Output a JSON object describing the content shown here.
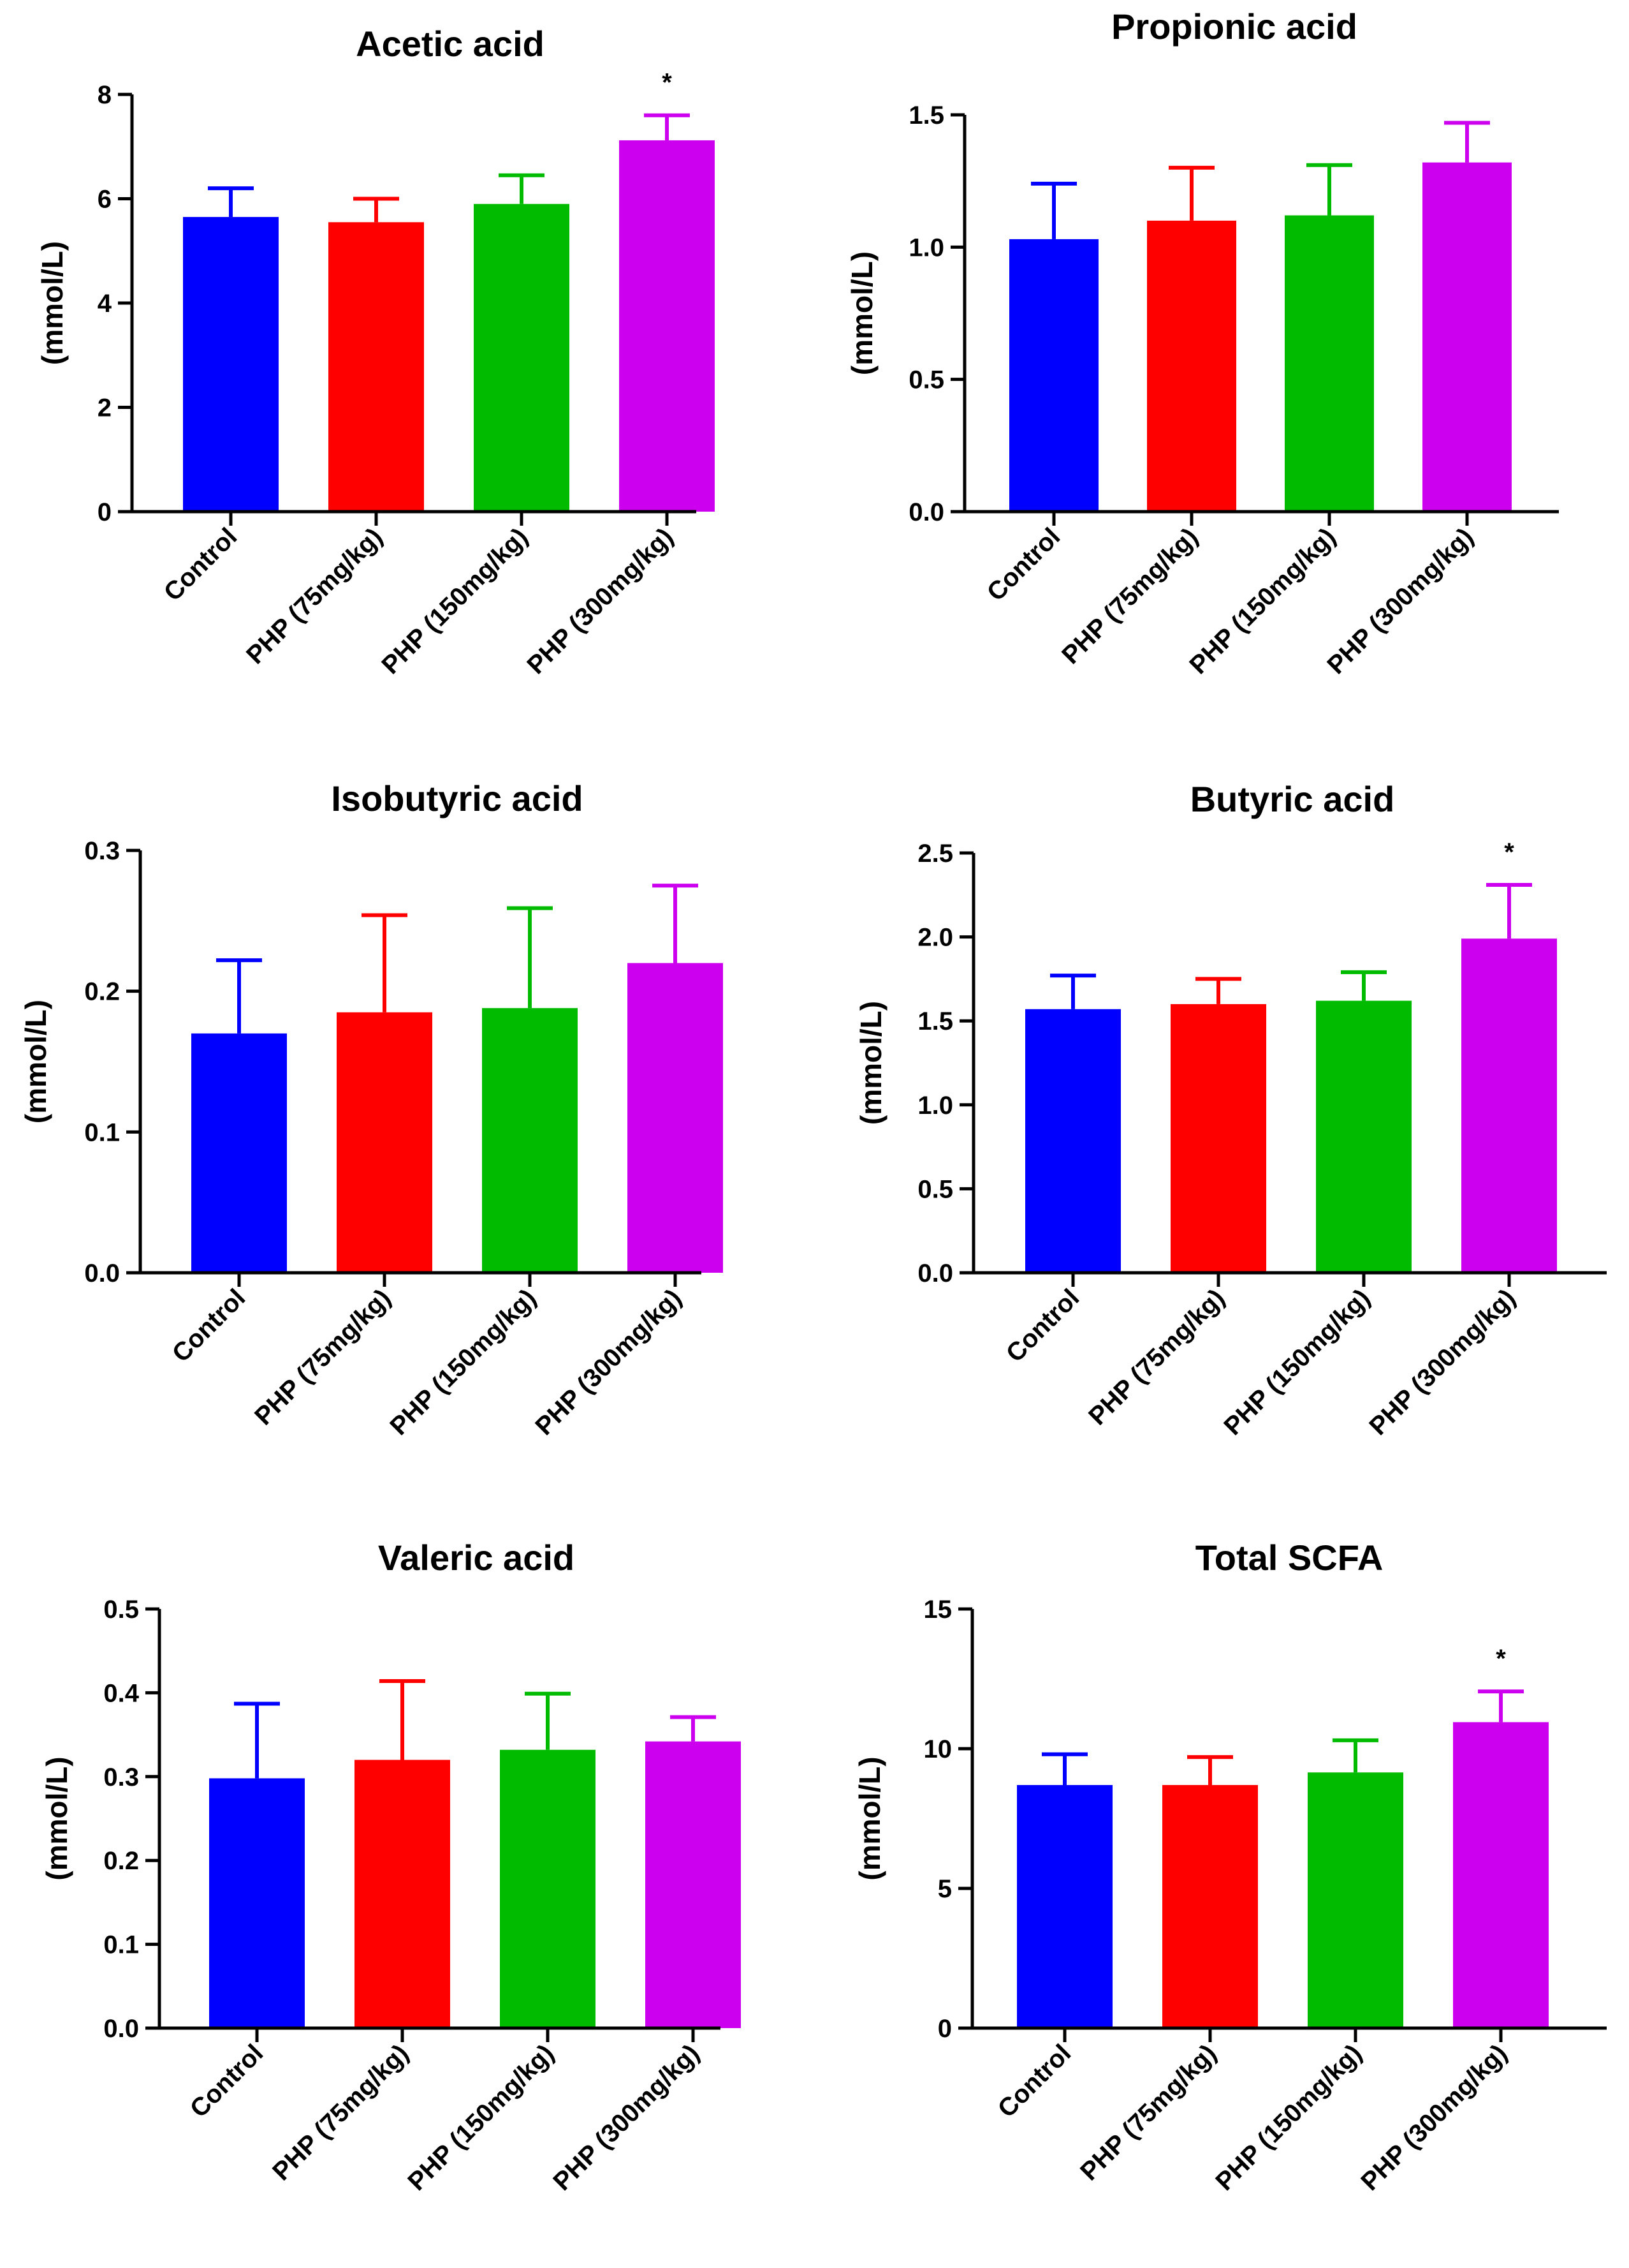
{
  "chart_data": [
    {
      "type": "bar",
      "title": "Acetic acid",
      "xlabel": "",
      "ylabel": "(mmol/L)",
      "categories": [
        "Control",
        "PHP (75mg/kg)",
        "PHP (150mg/kg)",
        "PHP (300mg/kg)"
      ],
      "values": [
        5.65,
        5.55,
        5.9,
        7.12
      ],
      "errors": [
        0.55,
        0.45,
        0.55,
        0.48
      ],
      "significance": [
        "",
        "",
        "",
        "*"
      ],
      "ylim": [
        0,
        8
      ],
      "yticks": [
        0,
        2,
        4,
        6,
        8
      ],
      "ytick_labels": [
        "0",
        "2",
        "4",
        "6",
        "8"
      ],
      "grid": false
    },
    {
      "type": "bar",
      "title": "Propionic acid",
      "xlabel": "",
      "ylabel": "(mmol/L)",
      "categories": [
        "Control",
        "PHP (75mg/kg)",
        "PHP (150mg/kg)",
        "PHP (300mg/kg)"
      ],
      "values": [
        1.03,
        1.1,
        1.12,
        1.32
      ],
      "errors": [
        0.21,
        0.2,
        0.19,
        0.15
      ],
      "significance": [
        "",
        "",
        "",
        ""
      ],
      "ylim": [
        0,
        1.5
      ],
      "yticks": [
        0,
        0.5,
        1.0,
        1.5
      ],
      "ytick_labels": [
        "0.0",
        "0.5",
        "1.0",
        "1.5"
      ],
      "grid": false
    },
    {
      "type": "bar",
      "title": "Isobutyric acid",
      "xlabel": "",
      "ylabel": "(mmol/L)",
      "categories": [
        "Control",
        "PHP (75mg/kg)",
        "PHP (150mg/kg)",
        "PHP (300mg/kg)"
      ],
      "values": [
        0.17,
        0.185,
        0.188,
        0.22
      ],
      "errors": [
        0.052,
        0.069,
        0.071,
        0.055
      ],
      "significance": [
        "",
        "",
        "",
        ""
      ],
      "ylim": [
        0,
        0.3
      ],
      "yticks": [
        0,
        0.1,
        0.2,
        0.3
      ],
      "ytick_labels": [
        "0.0",
        "0.1",
        "0.2",
        "0.3"
      ],
      "grid": false
    },
    {
      "type": "bar",
      "title": "Butyric acid",
      "xlabel": "",
      "ylabel": "(mmol/L)",
      "categories": [
        "Control",
        "PHP (75mg/kg)",
        "PHP (150mg/kg)",
        "PHP (300mg/kg)"
      ],
      "values": [
        1.57,
        1.6,
        1.62,
        1.99
      ],
      "errors": [
        0.2,
        0.15,
        0.17,
        0.32
      ],
      "significance": [
        "",
        "",
        "",
        "*"
      ],
      "ylim": [
        0,
        2.5
      ],
      "yticks": [
        0,
        0.5,
        1.0,
        1.5,
        2.0,
        2.5
      ],
      "ytick_labels": [
        "0.0",
        "0.5",
        "1.0",
        "1.5",
        "2.0",
        "2.5"
      ],
      "grid": false
    },
    {
      "type": "bar",
      "title": "Valeric acid",
      "xlabel": "",
      "ylabel": "(mmol/L)",
      "categories": [
        "Control",
        "PHP (75mg/kg)",
        "PHP (150mg/kg)",
        "PHP (300mg/kg)"
      ],
      "values": [
        0.298,
        0.32,
        0.332,
        0.342
      ],
      "errors": [
        0.089,
        0.094,
        0.067,
        0.029
      ],
      "significance": [
        "",
        "",
        "",
        ""
      ],
      "ylim": [
        0,
        0.5
      ],
      "yticks": [
        0,
        0.1,
        0.2,
        0.3,
        0.4,
        0.5
      ],
      "ytick_labels": [
        "0.0",
        "0.1",
        "0.2",
        "0.3",
        "0.4",
        "0.5"
      ],
      "grid": false
    },
    {
      "type": "bar",
      "title": "Total SCFA",
      "xlabel": "",
      "ylabel": "(mmol/L)",
      "categories": [
        "Control",
        "PHP (75mg/kg)",
        "PHP (150mg/kg)",
        "PHP (300mg/kg)"
      ],
      "values": [
        8.7,
        8.7,
        9.15,
        10.95
      ],
      "errors": [
        1.1,
        1.0,
        1.15,
        1.1
      ],
      "significance": [
        "",
        "",
        "",
        "*"
      ],
      "ylim": [
        0,
        15
      ],
      "yticks": [
        0,
        5,
        10,
        15
      ],
      "ytick_labels": [
        "0",
        "5",
        "10",
        "15"
      ],
      "grid": false
    }
  ],
  "colors": {
    "bars": [
      "#0000ff",
      "#ff0000",
      "#00bb00",
      "#cc00ee"
    ],
    "axis": "#000000"
  }
}
